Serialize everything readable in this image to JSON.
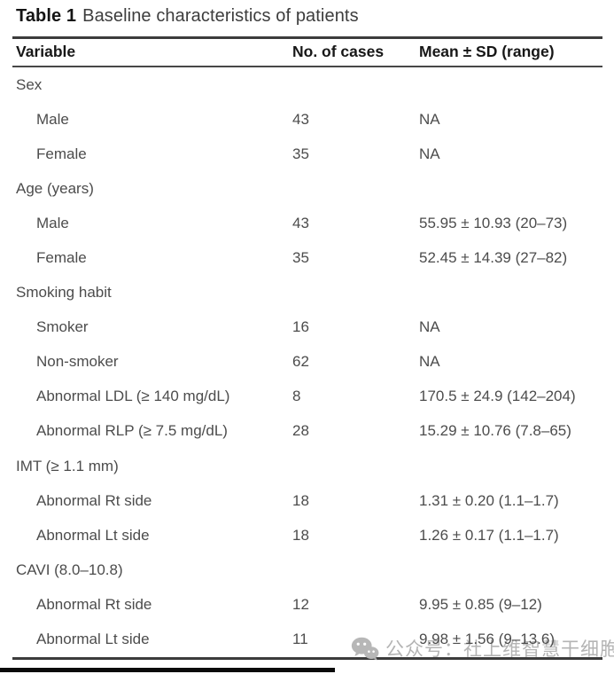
{
  "title": {
    "bold": "Table 1",
    "rest": "Baseline characteristics of patients"
  },
  "table": {
    "columns": [
      "Variable",
      "No. of cases",
      "Mean ± SD (range)"
    ],
    "rows": [
      {
        "type": "section",
        "variable": "Sex",
        "cases": "",
        "mean": ""
      },
      {
        "type": "data",
        "variable": "Male",
        "cases": "43",
        "mean": "NA"
      },
      {
        "type": "data",
        "variable": "Female",
        "cases": "35",
        "mean": "NA"
      },
      {
        "type": "section",
        "variable": "Age (years)",
        "cases": "",
        "mean": ""
      },
      {
        "type": "data",
        "variable": "Male",
        "cases": "43",
        "mean": "55.95 ± 10.93 (20–73)"
      },
      {
        "type": "data",
        "variable": "Female",
        "cases": "35",
        "mean": "52.45 ± 14.39 (27–82)"
      },
      {
        "type": "section",
        "variable": "Smoking habit",
        "cases": "",
        "mean": ""
      },
      {
        "type": "data",
        "variable": "Smoker",
        "cases": "16",
        "mean": "NA"
      },
      {
        "type": "data",
        "variable": "Non-smoker",
        "cases": "62",
        "mean": "NA"
      },
      {
        "type": "data",
        "variable": "Abnormal LDL (≥ 140 mg/dL)",
        "cases": "8",
        "mean": "170.5 ± 24.9 (142–204)"
      },
      {
        "type": "data",
        "variable": "Abnormal RLP (≥ 7.5 mg/dL)",
        "cases": "28",
        "mean": "15.29 ± 10.76 (7.8–65)"
      },
      {
        "type": "section",
        "variable": "IMT (≥ 1.1 mm)",
        "cases": "",
        "mean": ""
      },
      {
        "type": "data",
        "variable": "Abnormal Rt side",
        "cases": "18",
        "mean": "1.31 ± 0.20 (1.1–1.7)"
      },
      {
        "type": "data",
        "variable": "Abnormal Lt side",
        "cases": "18",
        "mean": "1.26 ± 0.17 (1.1–1.7)"
      },
      {
        "type": "section",
        "variable": "CAVI (8.0–10.8)",
        "cases": "",
        "mean": ""
      },
      {
        "type": "data",
        "variable": "Abnormal Rt side",
        "cases": "12",
        "mean": "9.95 ± 0.85 (9–12)"
      },
      {
        "type": "data",
        "variable": "Abnormal Lt side",
        "cases": "11",
        "mean": "9.98 ± 1.56 (9–13.6)"
      }
    ]
  },
  "watermark": {
    "icon": "wechat-icon",
    "text": "公众号：社上维智慧干细胞"
  },
  "colors": {
    "rule": "#3c3c3c",
    "body_text": "#4c4c4c",
    "header_text": "#171717",
    "watermark": "#b4b4b4",
    "bottom_bar": "#0a0a0a",
    "background": "#ffffff"
  }
}
